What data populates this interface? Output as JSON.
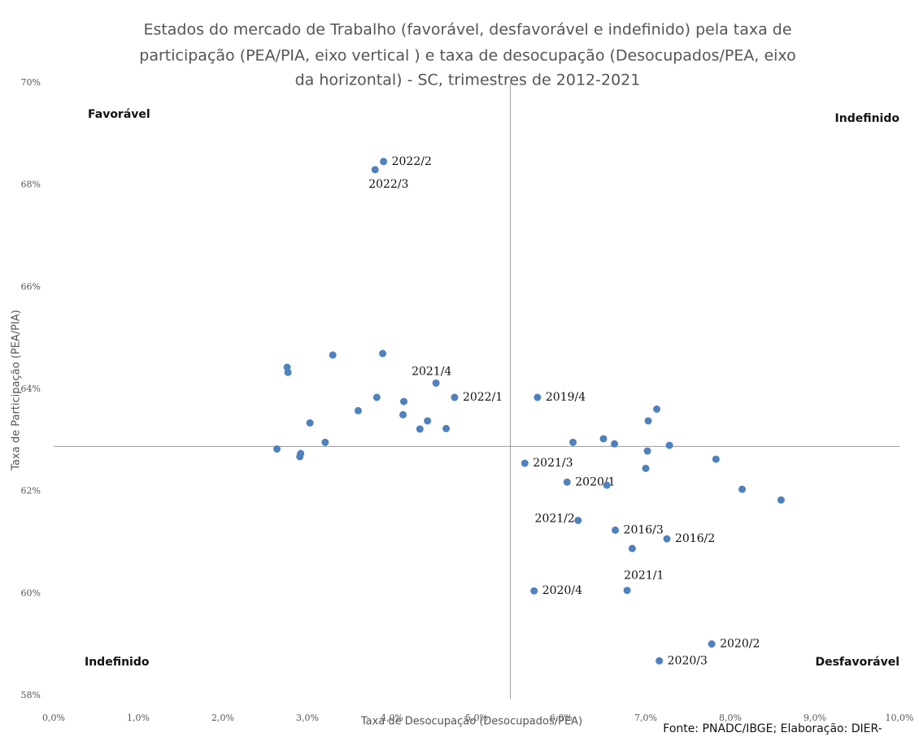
{
  "chart_data": {
    "type": "scatter",
    "title": [
      "Estados do mercado de Trabalho (favorável, desfavorável e indefinido) pela taxa de",
      "participação (PEA/PIA, eixo vertical ) e taxa de desocupação (Desocupados/PEA,  eixo",
      "da horizontal) - SC, trimestres de 2012-2021"
    ],
    "x_label": "Taxa de Desocupação (Desocupados/PEA)",
    "y_label": "Taxa de Participação (PEA/PIA)",
    "source": "Fonte: PNADC/IBGE; Elaboração: DIER-",
    "quadrant_labels": {
      "top_left": "Favorável",
      "top_right": "Indefinido",
      "bottom_left": "Indefinido",
      "bottom_right": "Desfavorável"
    },
    "xlim": [
      0,
      10
    ],
    "ylim": [
      58,
      70
    ],
    "xticks": [
      {
        "value": 0,
        "label": "0,0%"
      },
      {
        "value": 1,
        "label": "1,0%"
      },
      {
        "value": 2,
        "label": "2,0%"
      },
      {
        "value": 3,
        "label": "3,0%"
      },
      {
        "value": 4,
        "label": "4,0%"
      },
      {
        "value": 5,
        "label": "5,0%"
      },
      {
        "value": 6,
        "label": "6,0%"
      },
      {
        "value": 7,
        "label": "7,0%"
      },
      {
        "value": 8,
        "label": "8,0%"
      },
      {
        "value": 9,
        "label": "9,0%"
      },
      {
        "value": 10,
        "label": "10,0%"
      }
    ],
    "yticks": [
      {
        "value": 58,
        "label": "58%"
      },
      {
        "value": 60,
        "label": "60%"
      },
      {
        "value": 62,
        "label": "62%"
      },
      {
        "value": 64,
        "label": "64%"
      },
      {
        "value": 66,
        "label": "66%"
      },
      {
        "value": 68,
        "label": "68%"
      },
      {
        "value": 70,
        "label": "70%"
      }
    ],
    "reference_x": 5.4,
    "reference_y": 62.88,
    "grid": false,
    "series": [
      {
        "color": "#4f81bd",
        "x": [
          3.9,
          3.8,
          2.76,
          2.77,
          3.3,
          3.89,
          4.52,
          3.82,
          4.14,
          4.74,
          3.6,
          4.13,
          4.42,
          3.03,
          4.33,
          4.64,
          3.21,
          2.64,
          2.92,
          2.91,
          5.72,
          7.13,
          7.03,
          6.14,
          6.5,
          6.63,
          7.02,
          7.28,
          7.83,
          5.57,
          7.0,
          6.07,
          6.54,
          8.14,
          8.6,
          6.64,
          6.2,
          6.84,
          7.25,
          5.68,
          6.78,
          7.78,
          7.16
        ],
        "values": [
          68.46,
          68.3,
          64.43,
          64.33,
          64.67,
          64.7,
          64.12,
          63.84,
          63.76,
          63.84,
          63.58,
          63.5,
          63.38,
          63.34,
          63.22,
          63.23,
          62.96,
          62.83,
          62.74,
          62.68,
          63.84,
          63.61,
          63.38,
          62.96,
          63.03,
          62.93,
          62.79,
          62.9,
          62.63,
          62.55,
          62.45,
          62.18,
          62.12,
          62.04,
          61.83,
          61.24,
          61.43,
          60.88,
          61.07,
          60.05,
          60.06,
          59.01,
          58.68
        ],
        "point_labels": [
          "2022/2",
          "2022/3",
          null,
          null,
          null,
          null,
          "2021/4",
          null,
          null,
          "2022/1",
          null,
          null,
          null,
          null,
          null,
          null,
          null,
          null,
          null,
          null,
          "2019/4",
          null,
          null,
          null,
          null,
          null,
          null,
          null,
          null,
          "2021/3",
          null,
          "2020/1",
          null,
          null,
          null,
          "2016/3",
          "2021/2",
          null,
          "2016/2",
          "2020/4",
          "2021/1",
          "2020/2",
          "2020/3"
        ]
      }
    ]
  }
}
